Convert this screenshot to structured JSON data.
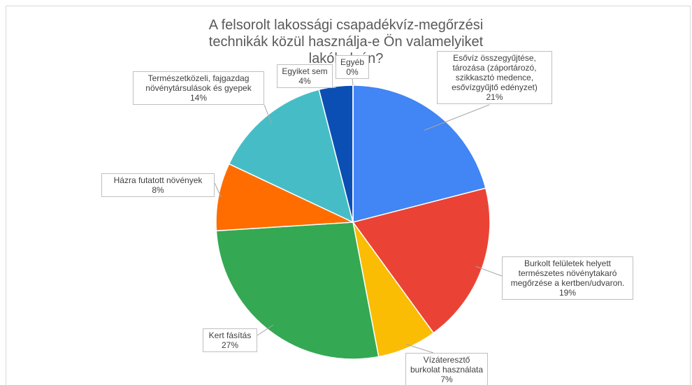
{
  "chart_data": {
    "type": "pie",
    "title": "A felsorolt lakossági csapadékvíz-megőrzési technikák közül használja-e Ön valamelyiket lakóhelyén?",
    "categories": [
      "Esővíz összegyűjtése, tározása (záportározó, szikkasztó medence, esővízgyűjtő edényzet)",
      "Burkolt felületek helyett természetes növénytakaró megőrzése a kertben/udvaron.",
      "Vízáteresztő burkolat használata",
      "Kert fásítás",
      "Házra futatott növények",
      "Természetközeli, fajgazdag növénytársulások és gyepek",
      "Egyiket sem",
      "Egyéb"
    ],
    "values": [
      21,
      19,
      7,
      27,
      8,
      14,
      4,
      0
    ],
    "value_labels": [
      "21%",
      "19%",
      "7%",
      "27%",
      "8%",
      "14%",
      "4%",
      "0%"
    ],
    "colors": [
      "#4285f4",
      "#ea4335",
      "#fbbc04",
      "#34a853",
      "#ff6d01",
      "#46bdc6",
      "#0b4fb4",
      "#8f8f8f"
    ]
  }
}
